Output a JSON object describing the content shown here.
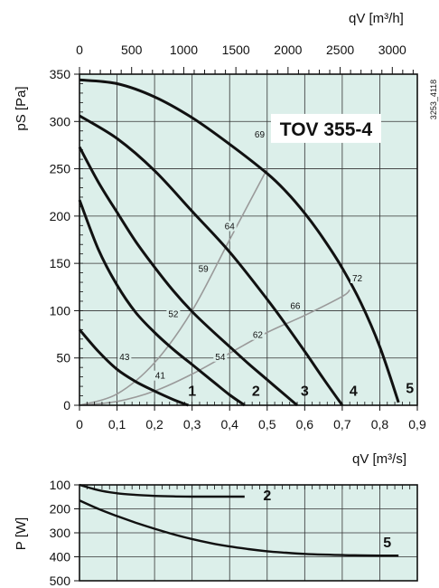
{
  "chart_data": [
    {
      "type": "line",
      "title": "TOV 355-4",
      "code": "3253_4118",
      "xlabel": "qV [m³/s]",
      "x2label": "qV [m³/h]",
      "ylabel": "pS [Pa]",
      "xlim": [
        0,
        0.9
      ],
      "ylim": [
        0,
        350
      ],
      "x2lim": [
        0,
        3240
      ],
      "x_ticks": [
        "0",
        "0,1",
        "0,2",
        "0,3",
        "0,4",
        "0,5",
        "0,6",
        "0,7",
        "0,8",
        "0,9"
      ],
      "x2_ticks": [
        "0",
        "500",
        "1000",
        "1500",
        "2000",
        "2500",
        "3000"
      ],
      "y_ticks": [
        "0",
        "50",
        "100",
        "150",
        "200",
        "250",
        "300",
        "350"
      ],
      "grid": true,
      "background": "#dcefea",
      "series": [
        {
          "name": "1",
          "x": [
            0,
            0.05,
            0.1,
            0.15,
            0.2,
            0.25,
            0.29
          ],
          "y": [
            80,
            57,
            38,
            25,
            15,
            6,
            0
          ]
        },
        {
          "name": "2",
          "x": [
            0,
            0.05,
            0.1,
            0.15,
            0.2,
            0.25,
            0.3,
            0.35,
            0.4,
            0.44
          ],
          "y": [
            217,
            165,
            127,
            98,
            77,
            59,
            43,
            27,
            11,
            0
          ]
        },
        {
          "name": "3",
          "x": [
            0,
            0.05,
            0.1,
            0.15,
            0.2,
            0.25,
            0.3,
            0.35,
            0.4,
            0.45,
            0.5,
            0.55,
            0.58
          ],
          "y": [
            273,
            236,
            204,
            173,
            146,
            121,
            99,
            80,
            62,
            44,
            27,
            10,
            0
          ]
        },
        {
          "name": "4",
          "x": [
            0,
            0.1,
            0.2,
            0.3,
            0.4,
            0.5,
            0.55,
            0.6,
            0.65,
            0.7
          ],
          "y": [
            306,
            282,
            248,
            205,
            162,
            112,
            85,
            57,
            28,
            0
          ]
        },
        {
          "name": "5",
          "x": [
            0,
            0.1,
            0.2,
            0.3,
            0.4,
            0.5,
            0.55,
            0.6,
            0.65,
            0.7,
            0.75,
            0.8,
            0.85
          ],
          "y": [
            344,
            340,
            326,
            304,
            276,
            245,
            226,
            203,
            176,
            145,
            108,
            62,
            3
          ]
        }
      ],
      "curve_labels": [
        {
          "text": "1",
          "x": 0.3,
          "y": 10
        },
        {
          "text": "2",
          "x": 0.47,
          "y": 10
        },
        {
          "text": "3",
          "x": 0.6,
          "y": 10
        },
        {
          "text": "4",
          "x": 0.73,
          "y": 10
        },
        {
          "text": "5",
          "x": 0.88,
          "y": 13
        }
      ],
      "system_curves": [
        {
          "x": [
            0,
            0.1,
            0.2,
            0.3,
            0.4,
            0.5
          ],
          "y": [
            0,
            12,
            45,
            100,
            175,
            250
          ]
        },
        {
          "x": [
            0,
            0.1,
            0.2,
            0.3,
            0.4,
            0.5,
            0.6,
            0.7,
            0.72
          ],
          "y": [
            0,
            4,
            15,
            33,
            55,
            77,
            95,
            115,
            122
          ]
        }
      ],
      "annotations": [
        {
          "text": "43",
          "x": 0.12,
          "y": 49
        },
        {
          "text": "41",
          "x": 0.215,
          "y": 29
        },
        {
          "text": "52",
          "x": 0.25,
          "y": 94
        },
        {
          "text": "54",
          "x": 0.375,
          "y": 49
        },
        {
          "text": "59",
          "x": 0.33,
          "y": 142
        },
        {
          "text": "62",
          "x": 0.475,
          "y": 72
        },
        {
          "text": "64",
          "x": 0.4,
          "y": 187
        },
        {
          "text": "66",
          "x": 0.575,
          "y": 103
        },
        {
          "text": "69",
          "x": 0.48,
          "y": 284
        },
        {
          "text": "72",
          "x": 0.74,
          "y": 132
        }
      ]
    },
    {
      "type": "line",
      "ylabel": "P [W]",
      "ylim": [
        100,
        500
      ],
      "y_ticks": [
        "100",
        "200",
        "300",
        "400",
        "500"
      ],
      "xlim": [
        0,
        0.9
      ],
      "grid": true,
      "series": [
        {
          "name": "2",
          "x": [
            0,
            0.05,
            0.1,
            0.15,
            0.2,
            0.25,
            0.3,
            0.35,
            0.4,
            0.44
          ],
          "y": [
            100,
            122,
            135,
            142,
            146,
            148,
            149,
            149,
            149,
            149
          ]
        },
        {
          "name": "5",
          "x": [
            0,
            0.05,
            0.1,
            0.15,
            0.2,
            0.25,
            0.3,
            0.35,
            0.4,
            0.45,
            0.5,
            0.55,
            0.6,
            0.65,
            0.7,
            0.75,
            0.8,
            0.85
          ],
          "y": [
            165,
            200,
            230,
            258,
            283,
            306,
            326,
            343,
            357,
            368,
            377,
            383,
            388,
            391,
            393,
            394,
            395,
            395
          ]
        }
      ],
      "curve_labels": [
        {
          "text": "2",
          "x": 0.5,
          "y": 165
        },
        {
          "text": "5",
          "x": 0.82,
          "y": 360
        }
      ]
    }
  ]
}
